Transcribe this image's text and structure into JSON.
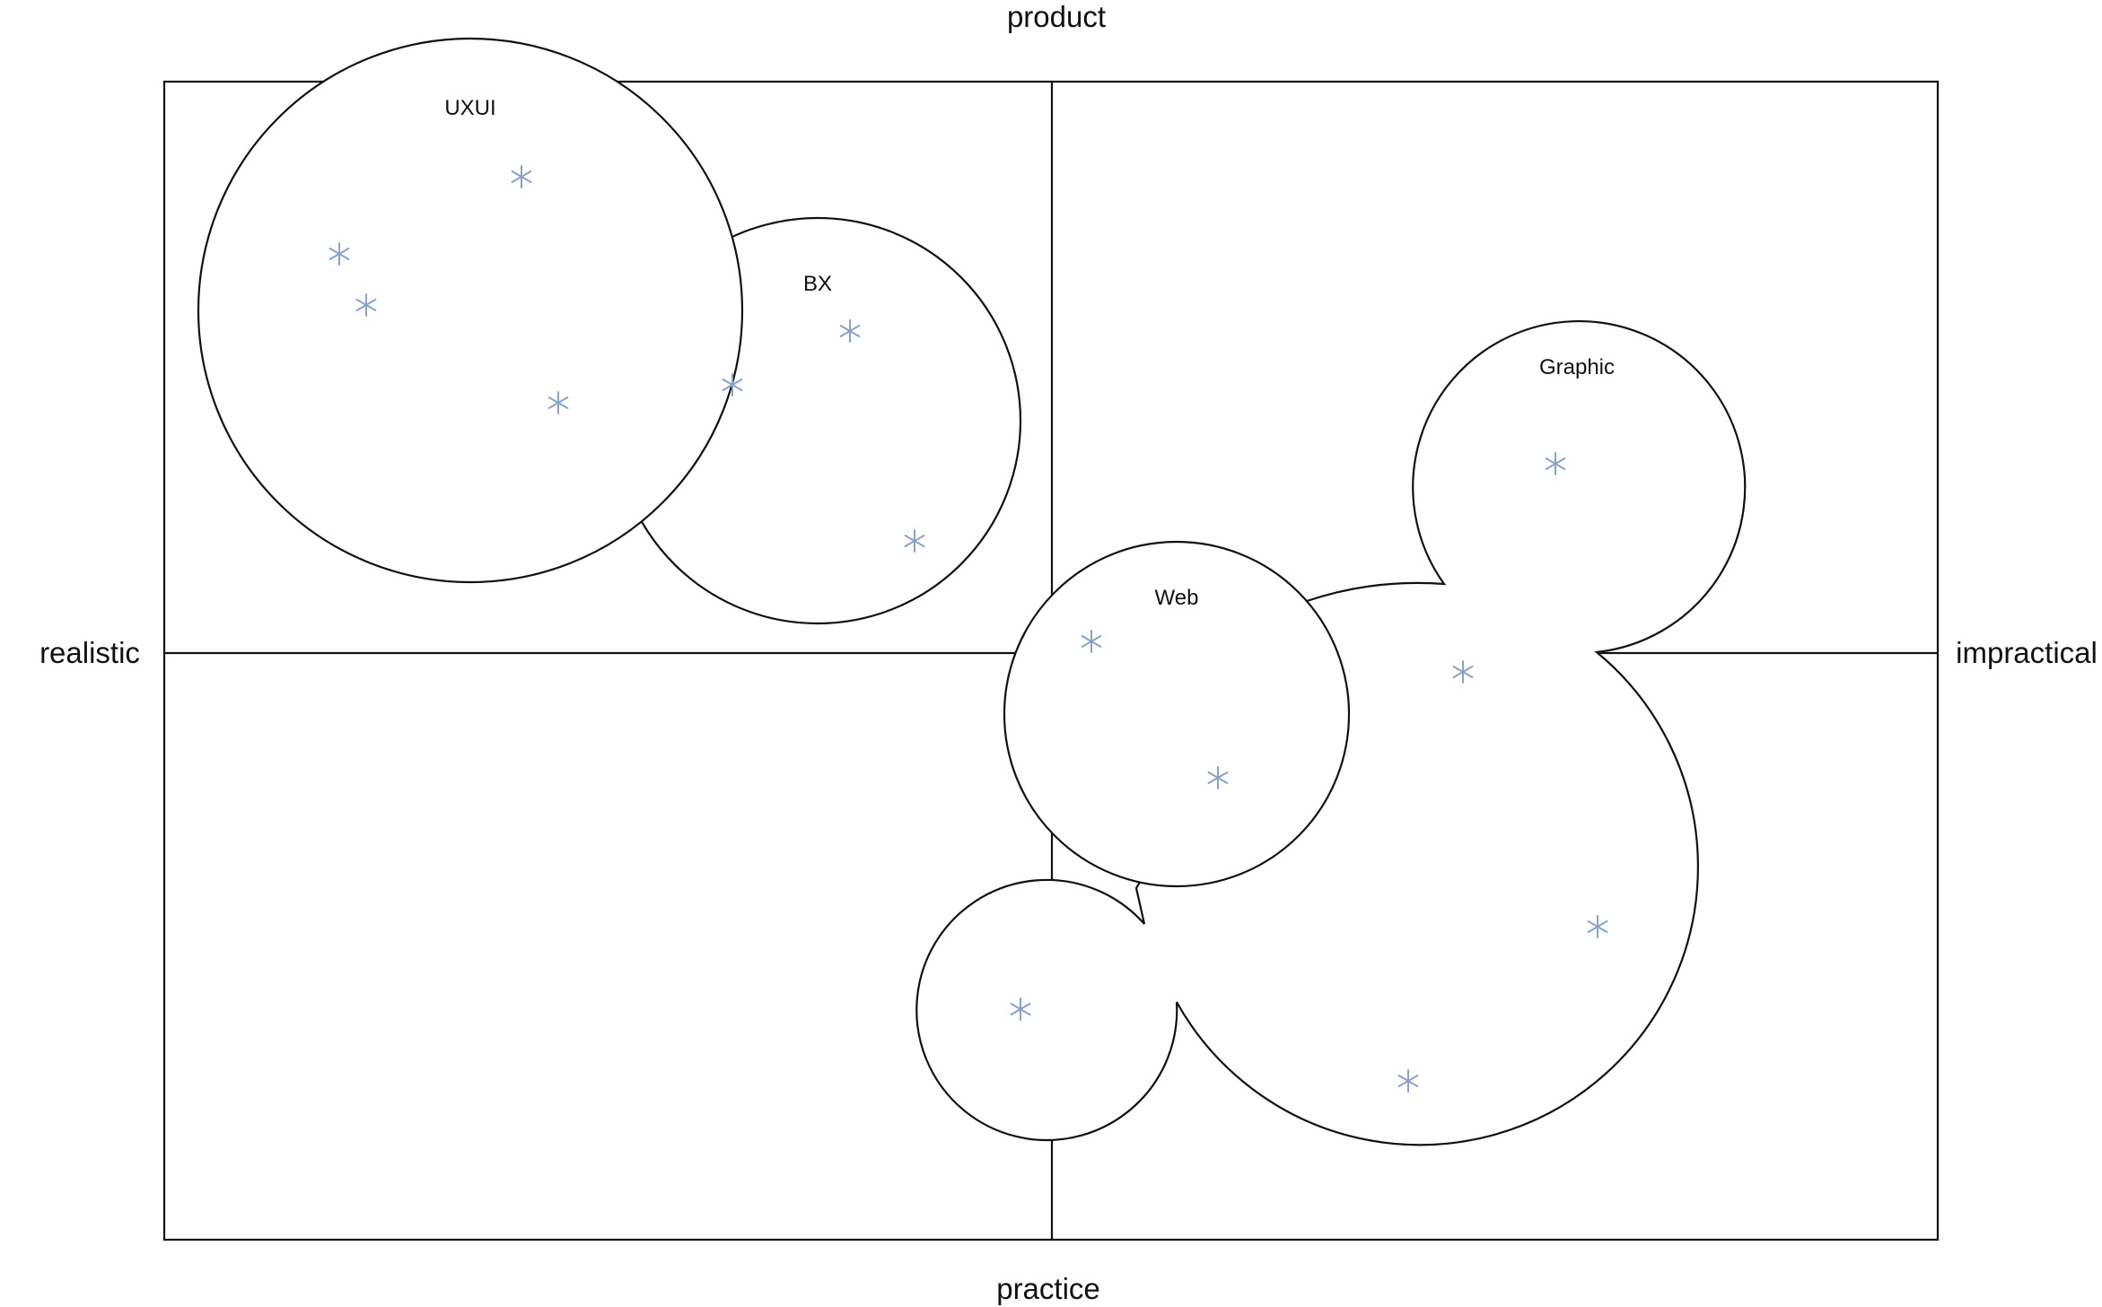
{
  "axes": {
    "top": "product",
    "bottom": "practice",
    "left": "realistic",
    "right": "impractical"
  },
  "clusters": [
    {
      "id": "uxui",
      "label": "UXUI"
    },
    {
      "id": "bx",
      "label": "BX"
    },
    {
      "id": "graphic",
      "label": "Graphic"
    },
    {
      "id": "web",
      "label": "Web"
    }
  ],
  "marker_icon": "asterisk-icon",
  "colors": {
    "marker": "#8aa2c8",
    "line": "#111111",
    "background": "#ffffff"
  }
}
